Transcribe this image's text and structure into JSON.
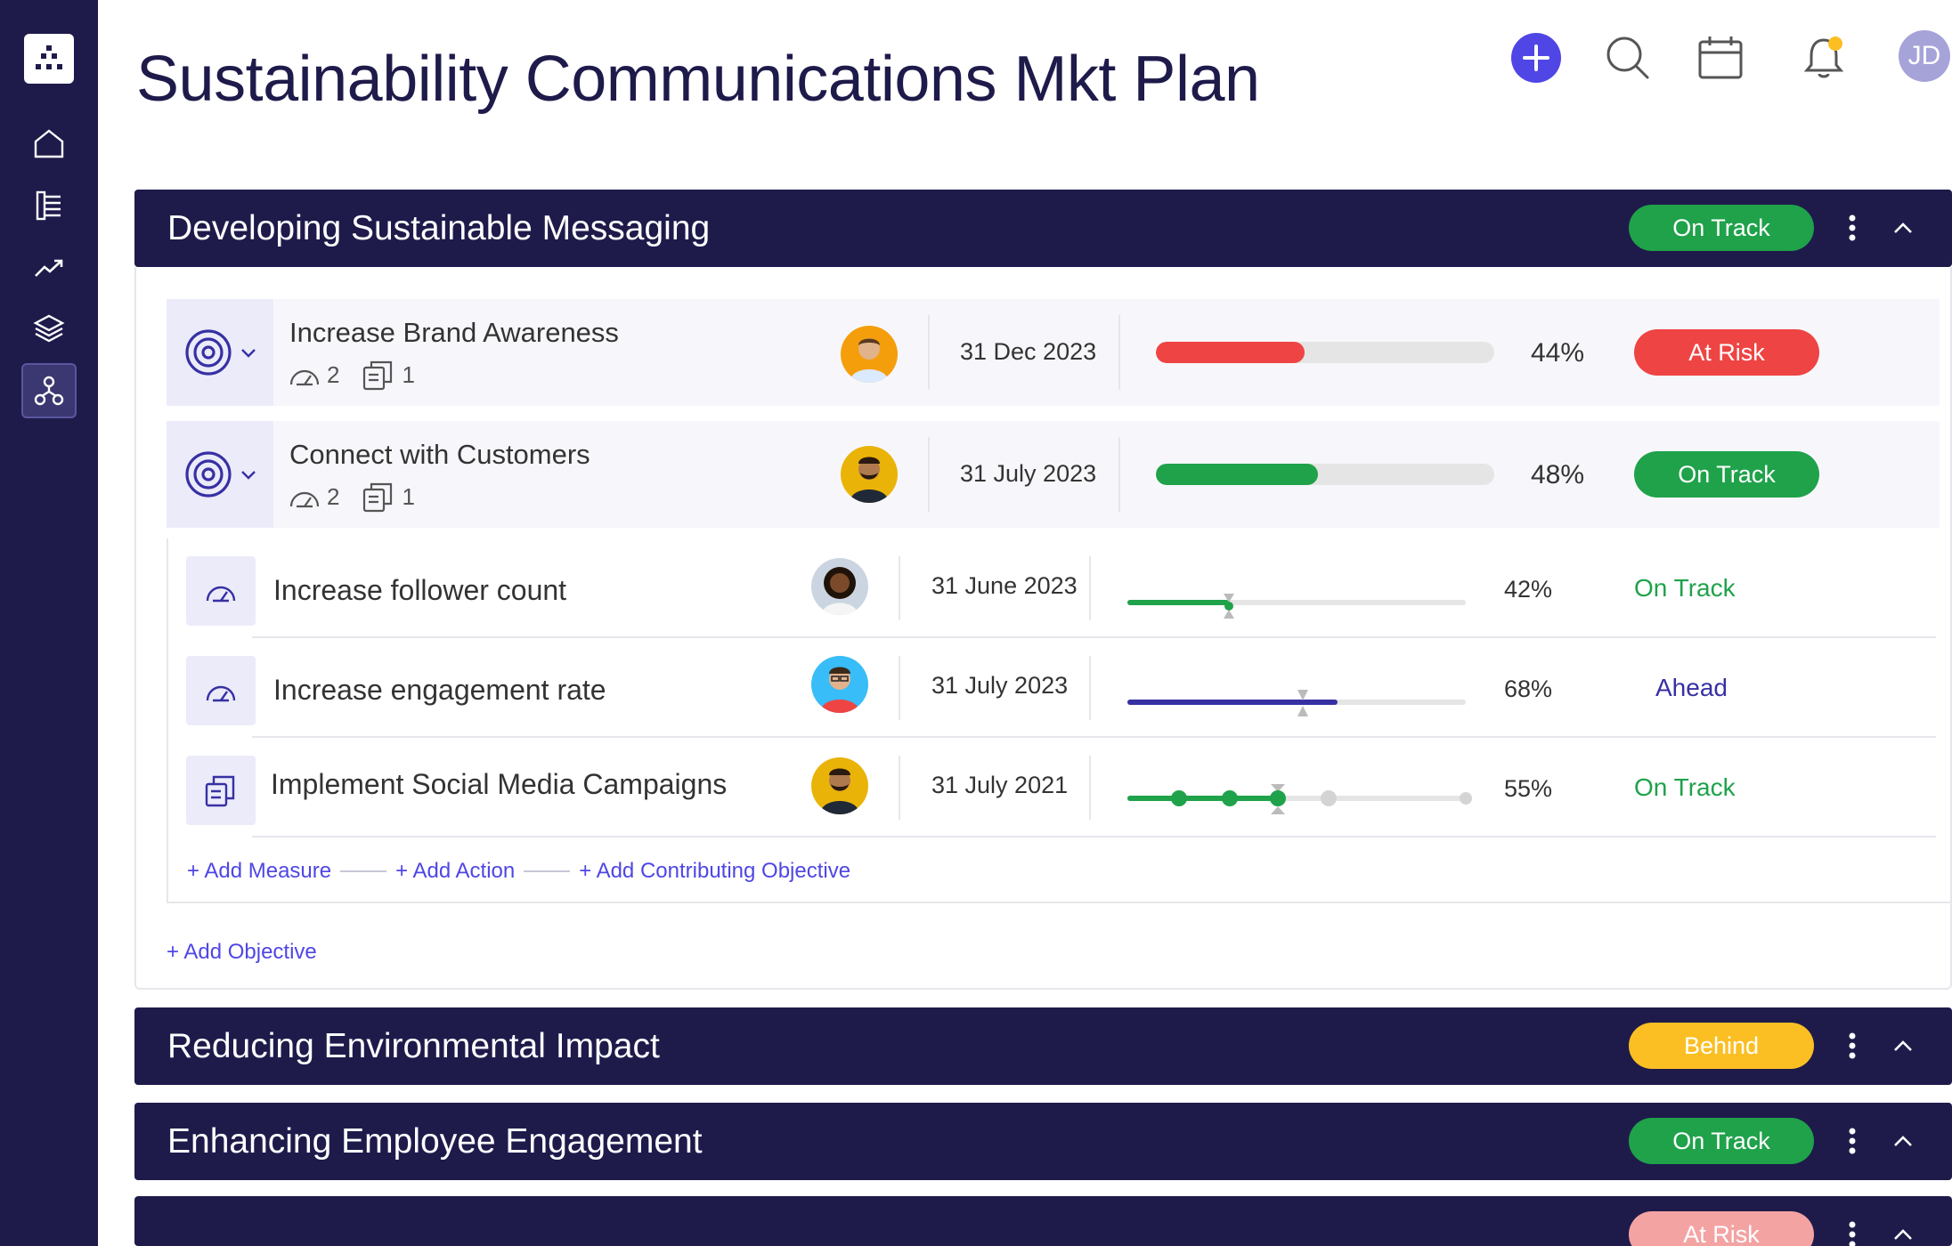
{
  "page": {
    "title": "Sustainability Communications Mkt Plan"
  },
  "topbar": {
    "user_initials": "JD"
  },
  "sections": [
    {
      "title": "Developing Sustainable Messaging",
      "status": "On Track"
    },
    {
      "title": "Reducing Environmental Impact",
      "status": "Behind"
    },
    {
      "title": "Enhancing Employee Engagement",
      "status": "On Track"
    },
    {
      "title": "",
      "status": "At Risk"
    }
  ],
  "objectives": [
    {
      "name": "Increase Brand Awareness",
      "measures_count": "2",
      "actions_count": "1",
      "due": "31 Dec 2023",
      "progress": 44,
      "progress_label": "44%",
      "status": "At Risk"
    },
    {
      "name": "Connect with Customers",
      "measures_count": "2",
      "actions_count": "1",
      "due": "31 July 2023",
      "progress": 48,
      "progress_label": "48%",
      "status": "On Track"
    }
  ],
  "key_results": [
    {
      "name": "Increase follower count",
      "due": "31 June 2023",
      "progress": 42,
      "progress_label": "42%",
      "status": "On Track",
      "color": "#1fa24a"
    },
    {
      "name": "Increase engagement rate",
      "due": "31 July 2023",
      "progress": 68,
      "progress_label": "68%",
      "status": "Ahead",
      "color": "#3730a3"
    },
    {
      "name": "Implement Social Media Campaigns",
      "due": "31 July 2021",
      "progress": 55,
      "progress_label": "55%",
      "status": "On Track",
      "color": "#1fa24a"
    }
  ],
  "links": {
    "add_measure": "+ Add Measure",
    "add_action": "+ Add Action",
    "add_contributing": "+ Add Contributing Objective",
    "add_objective": "+ Add Objective"
  },
  "colors": {
    "navy": "#1e1b4b",
    "green": "#1fa24a",
    "red": "#ef4444",
    "yellow": "#fbbf24",
    "accent": "#4f46e5"
  },
  "icons": [
    "logo-icon",
    "home-icon",
    "list-icon",
    "trend-icon",
    "layers-icon",
    "org-chart-icon",
    "plus-icon",
    "search-icon",
    "calendar-icon",
    "bell-icon",
    "target-icon",
    "gauge-icon",
    "document-icon",
    "kebab-icon",
    "chevron-up-icon",
    "chevron-down-icon"
  ]
}
